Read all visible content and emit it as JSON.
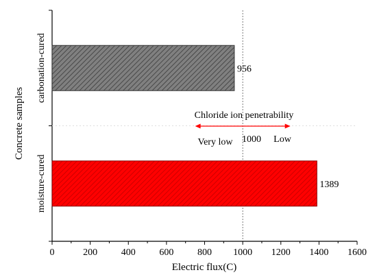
{
  "chart_data": {
    "type": "bar",
    "orientation": "horizontal",
    "categories": [
      "carbonation-cured",
      "moisture-cured"
    ],
    "values": [
      956,
      1389
    ],
    "data_labels": [
      "956",
      "1389"
    ],
    "bar_colors": [
      "#808080",
      "#ff0000"
    ],
    "bar_pattern": "diagonal hatch",
    "xlabel": "Electric flux(C)",
    "ylabel": "Concrete samples",
    "xlim": [
      0,
      1600
    ],
    "xticks": [
      0,
      200,
      400,
      600,
      800,
      1000,
      1200,
      1400,
      1600
    ],
    "xtick_labels": [
      "0",
      "200",
      "400",
      "600",
      "800",
      "1000",
      "1200",
      "1400",
      "1600"
    ],
    "grid": false,
    "reference_line": {
      "x": 1000,
      "style": "dotted"
    },
    "annotation": {
      "title": "Chloride ion penetrability",
      "arrow_range": [
        750,
        1250
      ],
      "arrow_color": "#ff0000",
      "left_label": "Very low",
      "center_label": "1000",
      "right_label": "Low"
    }
  }
}
